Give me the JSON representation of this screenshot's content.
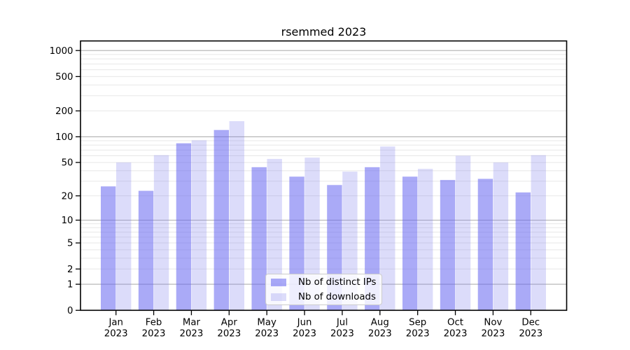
{
  "chart_data": {
    "type": "bar",
    "title": "rsemmed 2023",
    "categories": [
      "Jan",
      "Feb",
      "Mar",
      "Apr",
      "May",
      "Jun",
      "Jul",
      "Aug",
      "Sep",
      "Oct",
      "Nov",
      "Dec"
    ],
    "x_year": "2023",
    "series": [
      {
        "name": "Nb of distinct IPs",
        "color": "rgba(100,100,240,0.55)",
        "values": [
          26,
          23,
          84,
          120,
          44,
          34,
          27,
          44,
          34,
          31,
          32,
          22
        ]
      },
      {
        "name": "Nb of downloads",
        "color": "rgba(125,125,235,0.27)",
        "values": [
          50,
          61,
          91,
          152,
          55,
          57,
          39,
          77,
          42,
          60,
          50,
          61
        ]
      }
    ],
    "y_scale": "log10(1+v)",
    "ylim": [
      0,
      1000
    ],
    "y_ticks": [
      0,
      1,
      2,
      5,
      10,
      20,
      50,
      100,
      200,
      500,
      1000
    ],
    "y_major_gridlines": [
      1,
      10,
      100,
      1000
    ],
    "grid": true,
    "legend_position": "lower center",
    "colors": {
      "grid_major": "#b0b0b0",
      "grid_minor": "#e7e7e7",
      "spine": "#000000",
      "text": "#000000",
      "background": "#ffffff"
    }
  }
}
